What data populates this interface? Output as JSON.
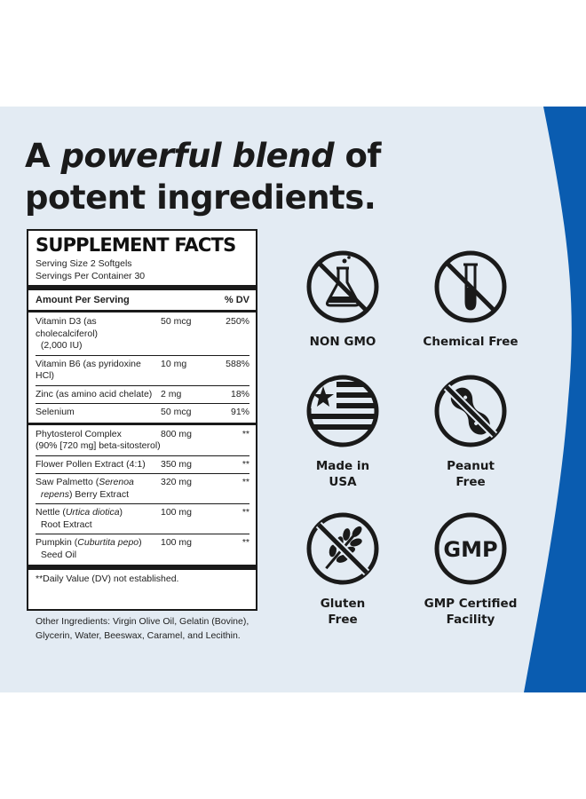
{
  "headline": {
    "line1_plain": "A ",
    "line1_emphasis": "powerful blend",
    "line1_end": " of",
    "line2": "potent ingredients."
  },
  "facts": {
    "title": "SUPPLEMENT FACTS",
    "serving_size": "Serving Size 2 Softgels",
    "servings_per_container": "Servings Per Container 30",
    "header": {
      "amount": "Amount Per Serving",
      "dv": "% DV"
    },
    "rows": [
      {
        "name": "Vitamin D3 (as cholecalciferol)",
        "sub": "(2,000 IU)",
        "amount": "50 mcg",
        "dv": "250%"
      },
      {
        "name": "Vitamin B6 (as pyridoxine HCl)",
        "amount": "10 mg",
        "dv": "588%"
      },
      {
        "name": "Zinc (as amino acid chelate)",
        "amount": "2 mg",
        "dv": "18%"
      },
      {
        "name": "Selenium",
        "amount": "50 mcg",
        "dv": "91%"
      },
      {
        "name": "Phytosterol Complex",
        "sub": "(90% [720 mg] beta-sitosterol)",
        "amount": "800 mg",
        "dv": "**"
      },
      {
        "name": "Flower Pollen Extract (4:1)",
        "amount": "350 mg",
        "dv": "**"
      },
      {
        "name_pre": "Saw Palmetto (",
        "name_italic": "Serenoa",
        "name_post": "",
        "sub_italic": "repens",
        "sub_post": ") Berry Extract",
        "amount": "320 mg",
        "dv": "**"
      },
      {
        "name_pre": "Nettle (",
        "name_italic": "Urtica diotica",
        "name_post": ")",
        "sub": "Root Extract",
        "amount": "100 mg",
        "dv": "**"
      },
      {
        "name_pre": "Pumpkin (",
        "name_italic": "Cuburtita pepo",
        "name_post": ")",
        "sub": "Seed Oil",
        "amount": "100 mg",
        "dv": "**"
      }
    ],
    "footnote": "**Daily Value (DV) not established."
  },
  "other_ingredients": "Other Ingredients: Virgin Olive Oil, Gelatin (Bovine), Glycerin, Water, Beeswax, Caramel, and Lecithin.",
  "badges": [
    {
      "icon": "flask-no-icon",
      "line1": "NON GMO",
      "line2": ""
    },
    {
      "icon": "test-tube-no-icon",
      "line1": "Chemical Free",
      "line2": ""
    },
    {
      "icon": "usa-flag-icon",
      "line1": "Made in",
      "line2": "USA"
    },
    {
      "icon": "peanut-no-icon",
      "line1": "Peanut",
      "line2": "Free"
    },
    {
      "icon": "wheat-no-icon",
      "line1": "Gluten",
      "line2": "Free"
    },
    {
      "icon": "gmp-icon",
      "line1": "GMP Certified",
      "line2": "Facility",
      "emblem": "GMP"
    }
  ],
  "colors": {
    "panel_bg": "#e3ebf3",
    "accent_blue": "#0a5cb0",
    "ink": "#1a1a1a"
  }
}
